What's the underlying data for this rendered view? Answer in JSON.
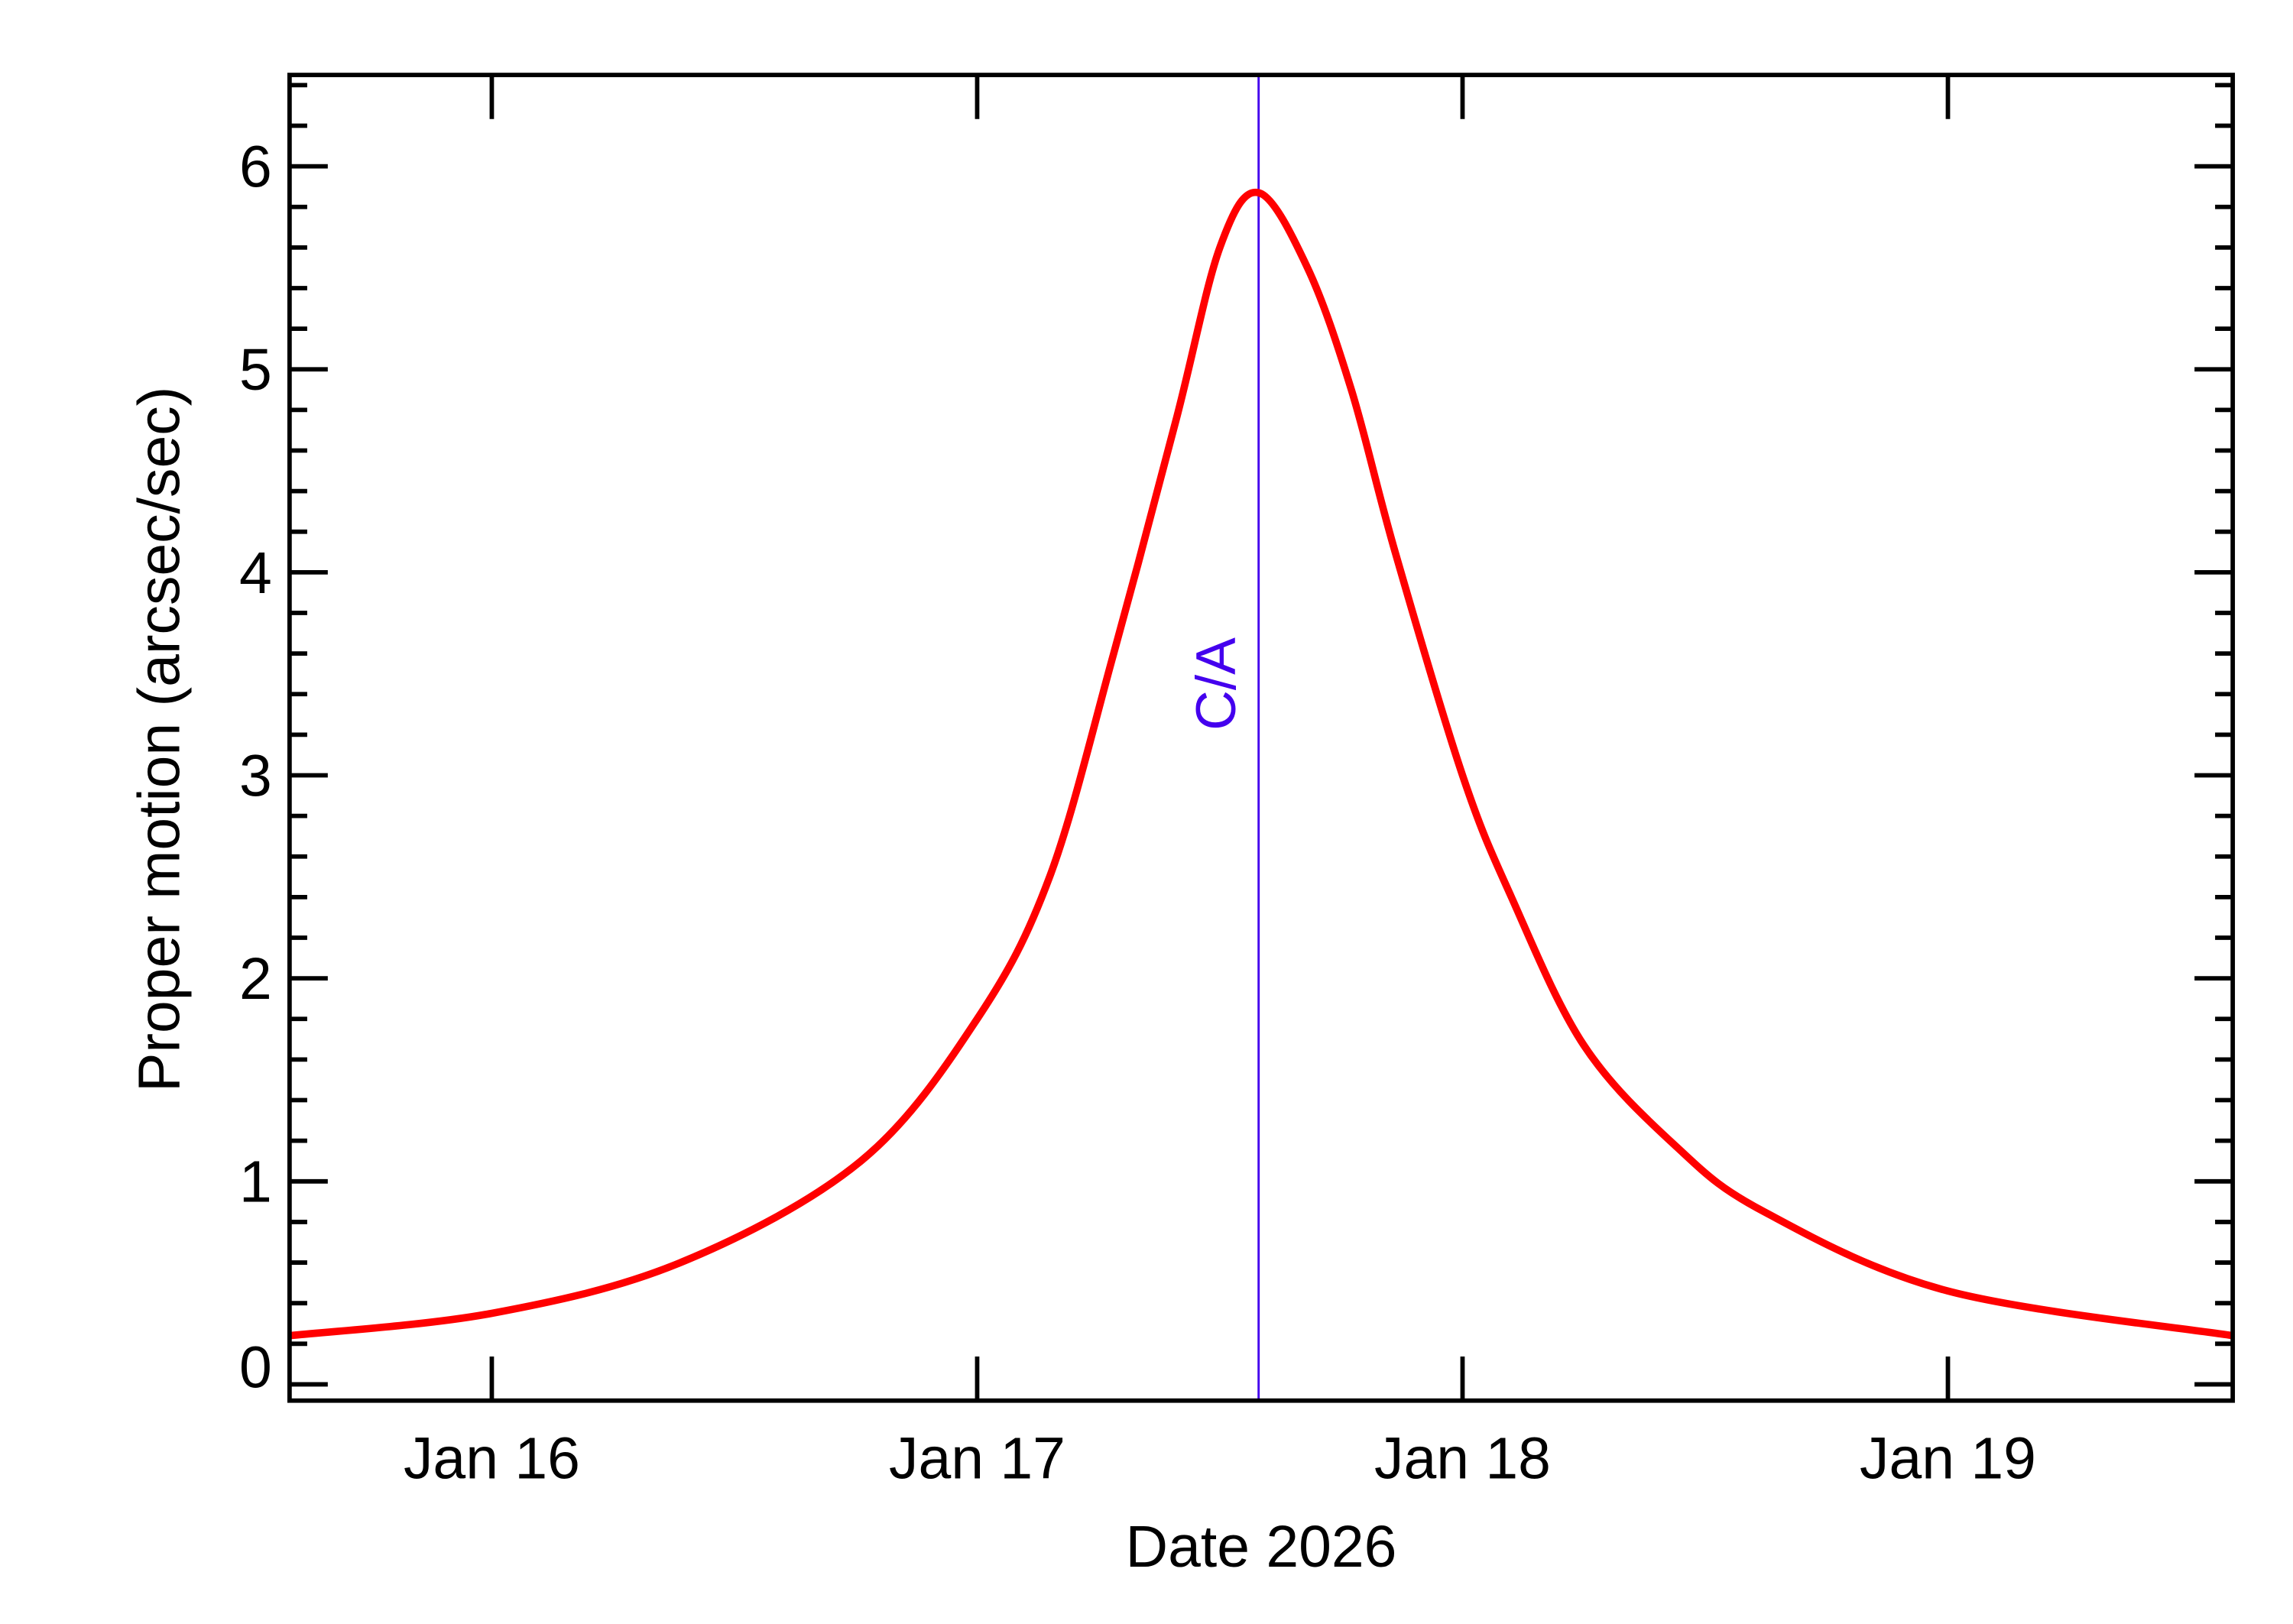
{
  "chart_data": {
    "type": "line",
    "title": "",
    "xlabel": "Date 2026",
    "ylabel": "Proper motion (arcsec/sec)",
    "xlim": [
      "2026-01-15 14:00",
      "2026-01-19 14:05"
    ],
    "ylim": [
      -0.08,
      6.45
    ],
    "x_ticks": [
      {
        "date": "2026-01-16 00:00",
        "label": "Jan 16"
      },
      {
        "date": "2026-01-17 00:00",
        "label": "Jan 17"
      },
      {
        "date": "2026-01-18 00:00",
        "label": "Jan 18"
      },
      {
        "date": "2026-01-19 00:00",
        "label": "Jan 19"
      }
    ],
    "y_ticks": [
      "0",
      "1",
      "2",
      "3",
      "4",
      "5",
      "6"
    ],
    "y_minor_step": 0.2,
    "grid": false,
    "series": [
      {
        "color": "#ff0000",
        "x": [
          "2026-01-15 14:00",
          "2026-01-16 00:00",
          "2026-01-16 09:20",
          "2026-01-16 18:15",
          "2026-01-17 00:00",
          "2026-01-17 03:35",
          "2026-01-17 06:45",
          "2026-01-17 09:50",
          "2026-01-17 12:00",
          "2026-01-17 13:55",
          "2026-01-17 16:20",
          "2026-01-17 18:30",
          "2026-01-17 20:40",
          "2026-01-18 00:00",
          "2026-01-18 02:25",
          "2026-01-18 06:00",
          "2026-01-18 10:35",
          "2026-01-18 14:55",
          "2026-01-19 00:00",
          "2026-01-19 14:05"
        ],
        "y": [
          0.24,
          0.35,
          0.6,
          1.1,
          1.8,
          2.5,
          3.6,
          4.75,
          5.6,
          5.87,
          5.5,
          4.9,
          4.1,
          3.0,
          2.4,
          1.67,
          1.17,
          0.85,
          0.46,
          0.24
        ]
      }
    ],
    "annotations": [
      {
        "type": "vline",
        "date": "2026-01-17 13:55",
        "label": "C/A",
        "color": "#4400ee"
      }
    ]
  }
}
